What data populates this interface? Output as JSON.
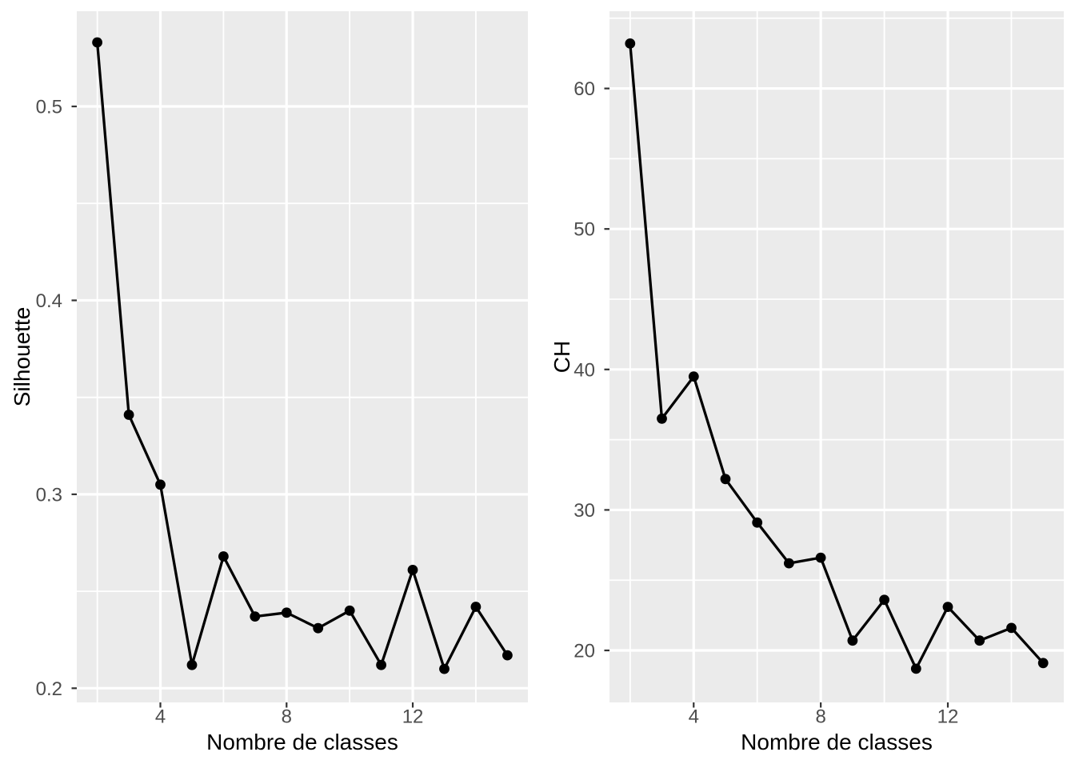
{
  "styles": {
    "page_bg": "#FFFFFF",
    "panel_bg": "#EBEBEB",
    "grid_color": "#FFFFFF",
    "line_color": "#000000",
    "point_color": "#000000",
    "tick_label_color": "#4D4D4D",
    "tick_mark_color": "#333333",
    "axis_title_color": "#000000"
  },
  "chart_data": [
    {
      "type": "line",
      "title": "",
      "xlabel": "Nombre de classes",
      "ylabel": "Silhouette",
      "x": [
        2,
        3,
        4,
        5,
        6,
        7,
        8,
        9,
        10,
        11,
        12,
        13,
        14,
        15
      ],
      "values": [
        0.533,
        0.341,
        0.305,
        0.212,
        0.268,
        0.237,
        0.239,
        0.231,
        0.24,
        0.212,
        0.261,
        0.21,
        0.242,
        0.217
      ],
      "xlim": [
        1.35,
        15.65
      ],
      "ylim": [
        0.1927,
        0.5491
      ],
      "x_major_ticks": [
        4,
        8,
        12
      ],
      "x_tick_labels": [
        "4",
        "8",
        "12"
      ],
      "x_minor_gridlines": [
        2,
        6,
        10,
        14
      ],
      "y_major_ticks": [
        0.2,
        0.3,
        0.4,
        0.5
      ],
      "y_tick_labels": [
        "0.2",
        "0.3",
        "0.4",
        "0.5"
      ],
      "y_minor_gridlines": [
        0.25,
        0.35,
        0.45
      ],
      "grid": true,
      "legend": "none",
      "marker": "filled-circle"
    },
    {
      "type": "line",
      "title": "",
      "xlabel": "Nombre de classes",
      "ylabel": "CH",
      "x": [
        2,
        3,
        4,
        5,
        6,
        7,
        8,
        9,
        10,
        11,
        12,
        13,
        14,
        15
      ],
      "values": [
        63.2,
        36.5,
        39.5,
        32.2,
        29.1,
        26.2,
        26.6,
        20.7,
        23.6,
        18.7,
        23.1,
        20.7,
        21.6,
        19.1
      ],
      "xlim": [
        1.35,
        15.65
      ],
      "ylim": [
        16.3,
        65.5
      ],
      "x_major_ticks": [
        4,
        8,
        12
      ],
      "x_tick_labels": [
        "4",
        "8",
        "12"
      ],
      "x_minor_gridlines": [
        2,
        6,
        10,
        14
      ],
      "y_major_ticks": [
        20,
        30,
        40,
        50,
        60
      ],
      "y_tick_labels": [
        "20",
        "30",
        "40",
        "50",
        "60"
      ],
      "y_minor_gridlines": [
        25,
        35,
        45,
        55,
        65
      ],
      "grid": true,
      "legend": "none",
      "marker": "filled-circle"
    }
  ]
}
